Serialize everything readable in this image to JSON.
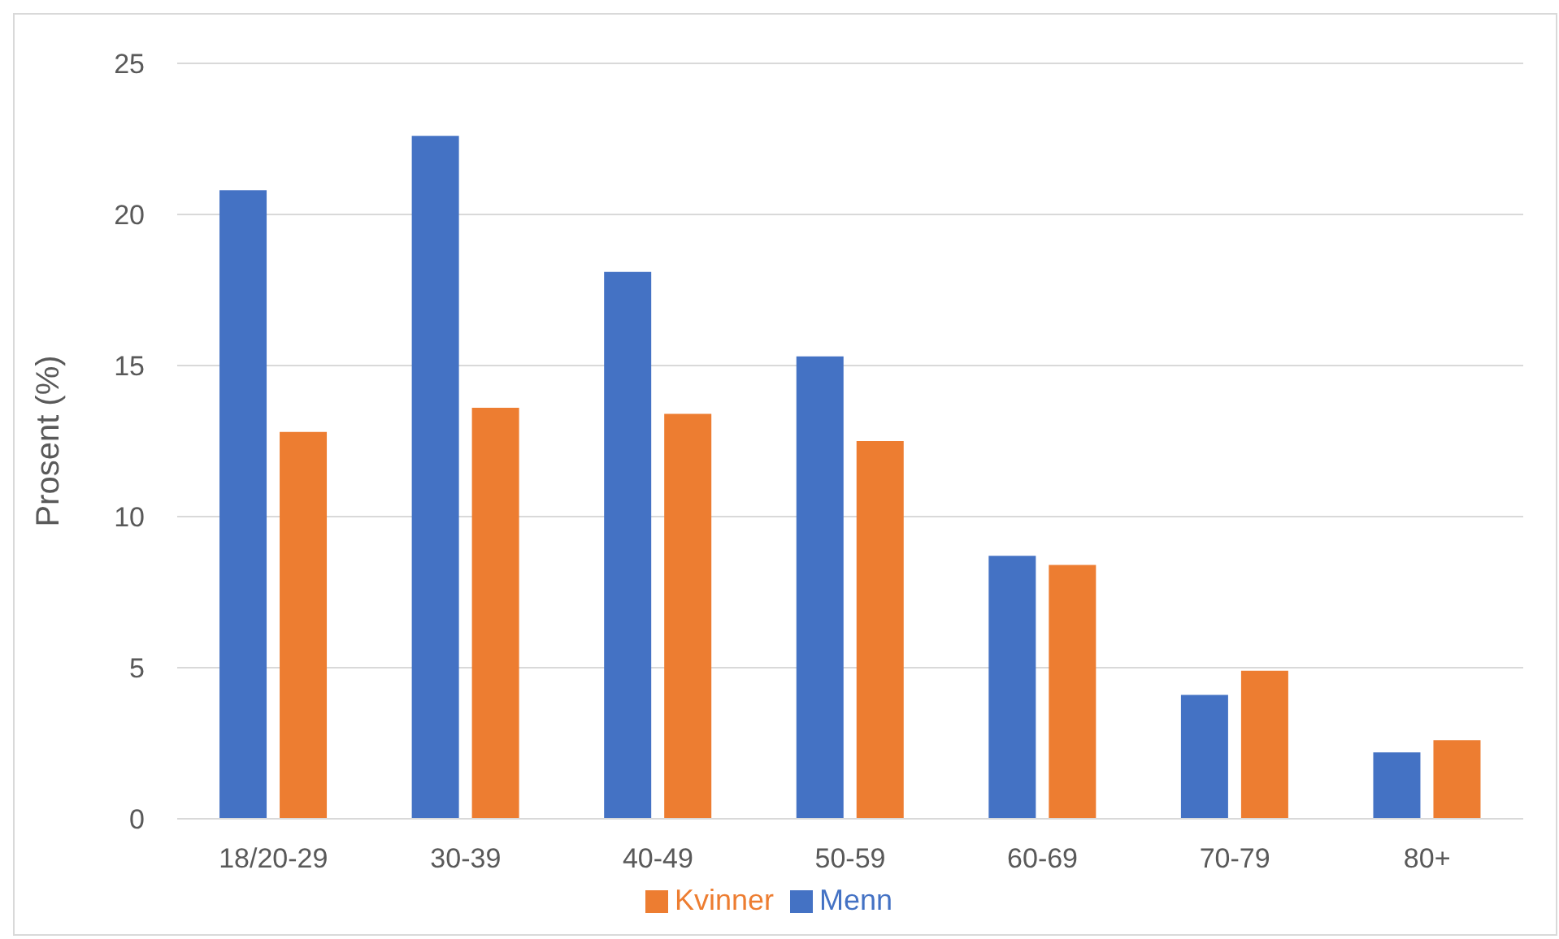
{
  "chart_data": {
    "type": "bar",
    "ylabel": "Prosent (%)",
    "categories": [
      "18/20-29",
      "30-39",
      "40-49",
      "50-59",
      "60-69",
      "70-79",
      "80+"
    ],
    "series": [
      {
        "name": "Menn",
        "color": "#4472c4",
        "values": [
          20.8,
          22.6,
          18.1,
          15.3,
          8.7,
          4.1,
          2.2
        ]
      },
      {
        "name": "Kvinner",
        "color": "#ed7d31",
        "values": [
          12.8,
          13.6,
          13.4,
          12.5,
          8.4,
          4.9,
          2.6
        ]
      }
    ],
    "ylim": [
      0,
      25
    ],
    "yticks": [
      0,
      5,
      10,
      15,
      20,
      25
    ],
    "grid": "y",
    "legend": "bottom"
  }
}
